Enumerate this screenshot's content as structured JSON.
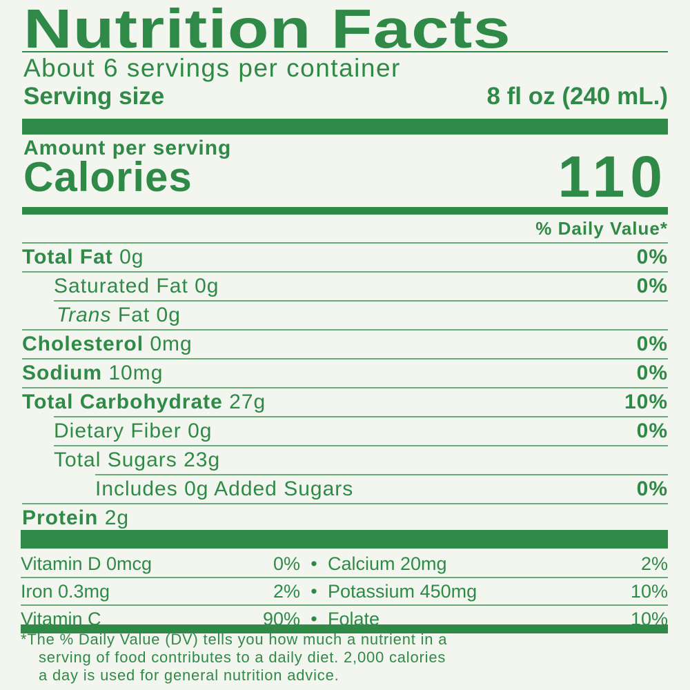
{
  "title": "Nutrition Facts",
  "servings_per_container": "About 6 servings per container",
  "serving_size": {
    "label": "Serving size",
    "value": "8 fl oz (240 mL.)"
  },
  "amount_per_serving": "Amount per serving",
  "calories": {
    "label": "Calories",
    "value": "110"
  },
  "daily_value_header": "% Daily Value*",
  "nutrients": [
    {
      "name": "Total Fat",
      "amount": "0g",
      "dv": "0%"
    },
    {
      "name": "Saturated Fat",
      "amount": "0g",
      "dv": "0%"
    },
    {
      "name": "Trans",
      "suffix": "Fat",
      "amount": "0g",
      "dv": ""
    },
    {
      "name": "Cholesterol",
      "amount": "0mg",
      "dv": "0%"
    },
    {
      "name": "Sodium",
      "amount": "10mg",
      "dv": "0%"
    },
    {
      "name": "Total Carbohydrate",
      "amount": "27g",
      "dv": "10%"
    },
    {
      "name": "Dietary Fiber",
      "amount": "0g",
      "dv": "0%"
    },
    {
      "name": "Total Sugars",
      "amount": "23g",
      "dv": ""
    },
    {
      "name": "Includes 0g Added Sugars",
      "amount": "",
      "dv": "0%"
    },
    {
      "name": "Protein",
      "amount": "2g",
      "dv": ""
    }
  ],
  "vitamins": [
    {
      "left": "Vitamin D 0mcg",
      "left_dv": "0%",
      "right": "Calcium 20mg",
      "right_dv": "2%"
    },
    {
      "left": "Iron 0.3mg",
      "left_dv": "2%",
      "right": "Potassium 450mg",
      "right_dv": "10%"
    },
    {
      "left": "Vitamin C",
      "left_dv": "90%",
      "right": "Folate",
      "right_dv": "10%"
    }
  ],
  "bullet": "•",
  "footnote": [
    "*The % Daily Value (DV) tells you how much a nutrient in a",
    "serving of food contributes to a daily diet. 2,000 calories",
    "a day is used for general nutrition advice."
  ],
  "colors": {
    "ink": "#2f8a47",
    "background": "#f3f5ef"
  }
}
